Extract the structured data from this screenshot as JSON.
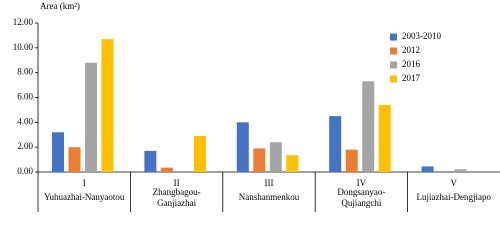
{
  "chart_data": {
    "type": "bar",
    "y_label": "Area (km²)",
    "category_numerals": [
      "I",
      "II",
      "III",
      "IV",
      "V"
    ],
    "categories": [
      "Yuhuazhai-Nanyaotou",
      "Zhangbagou-Ganjiazhai",
      "Nanshanmenkou",
      "Dongsanyao-Qujiangchi",
      "Lujiazhai-Dengjiapo"
    ],
    "series": [
      {
        "name": "2003-2010",
        "color": "#4472c4",
        "values": [
          3.2,
          1.7,
          4.0,
          4.5,
          0.45
        ]
      },
      {
        "name": "2012",
        "color": "#ed7d31",
        "values": [
          2.0,
          0.35,
          1.9,
          1.8,
          0
        ]
      },
      {
        "name": "2016",
        "color": "#a5a5a5",
        "values": [
          8.8,
          0,
          2.4,
          7.3,
          0.22
        ]
      },
      {
        "name": "2017",
        "color": "#ffc000",
        "values": [
          10.7,
          2.9,
          1.35,
          5.4,
          0
        ]
      }
    ],
    "ylim": [
      0,
      12
    ],
    "yticks": [
      {
        "value": 0,
        "label": "0.00"
      },
      {
        "value": 2,
        "label": "2.00"
      },
      {
        "value": 4,
        "label": "4.00"
      },
      {
        "value": 6,
        "label": "6.00"
      },
      {
        "value": 8,
        "label": "8.00"
      },
      {
        "value": 10,
        "label": "10.00"
      },
      {
        "value": 12,
        "label": "12.00"
      }
    ],
    "grid": false,
    "legend": "upper right"
  }
}
